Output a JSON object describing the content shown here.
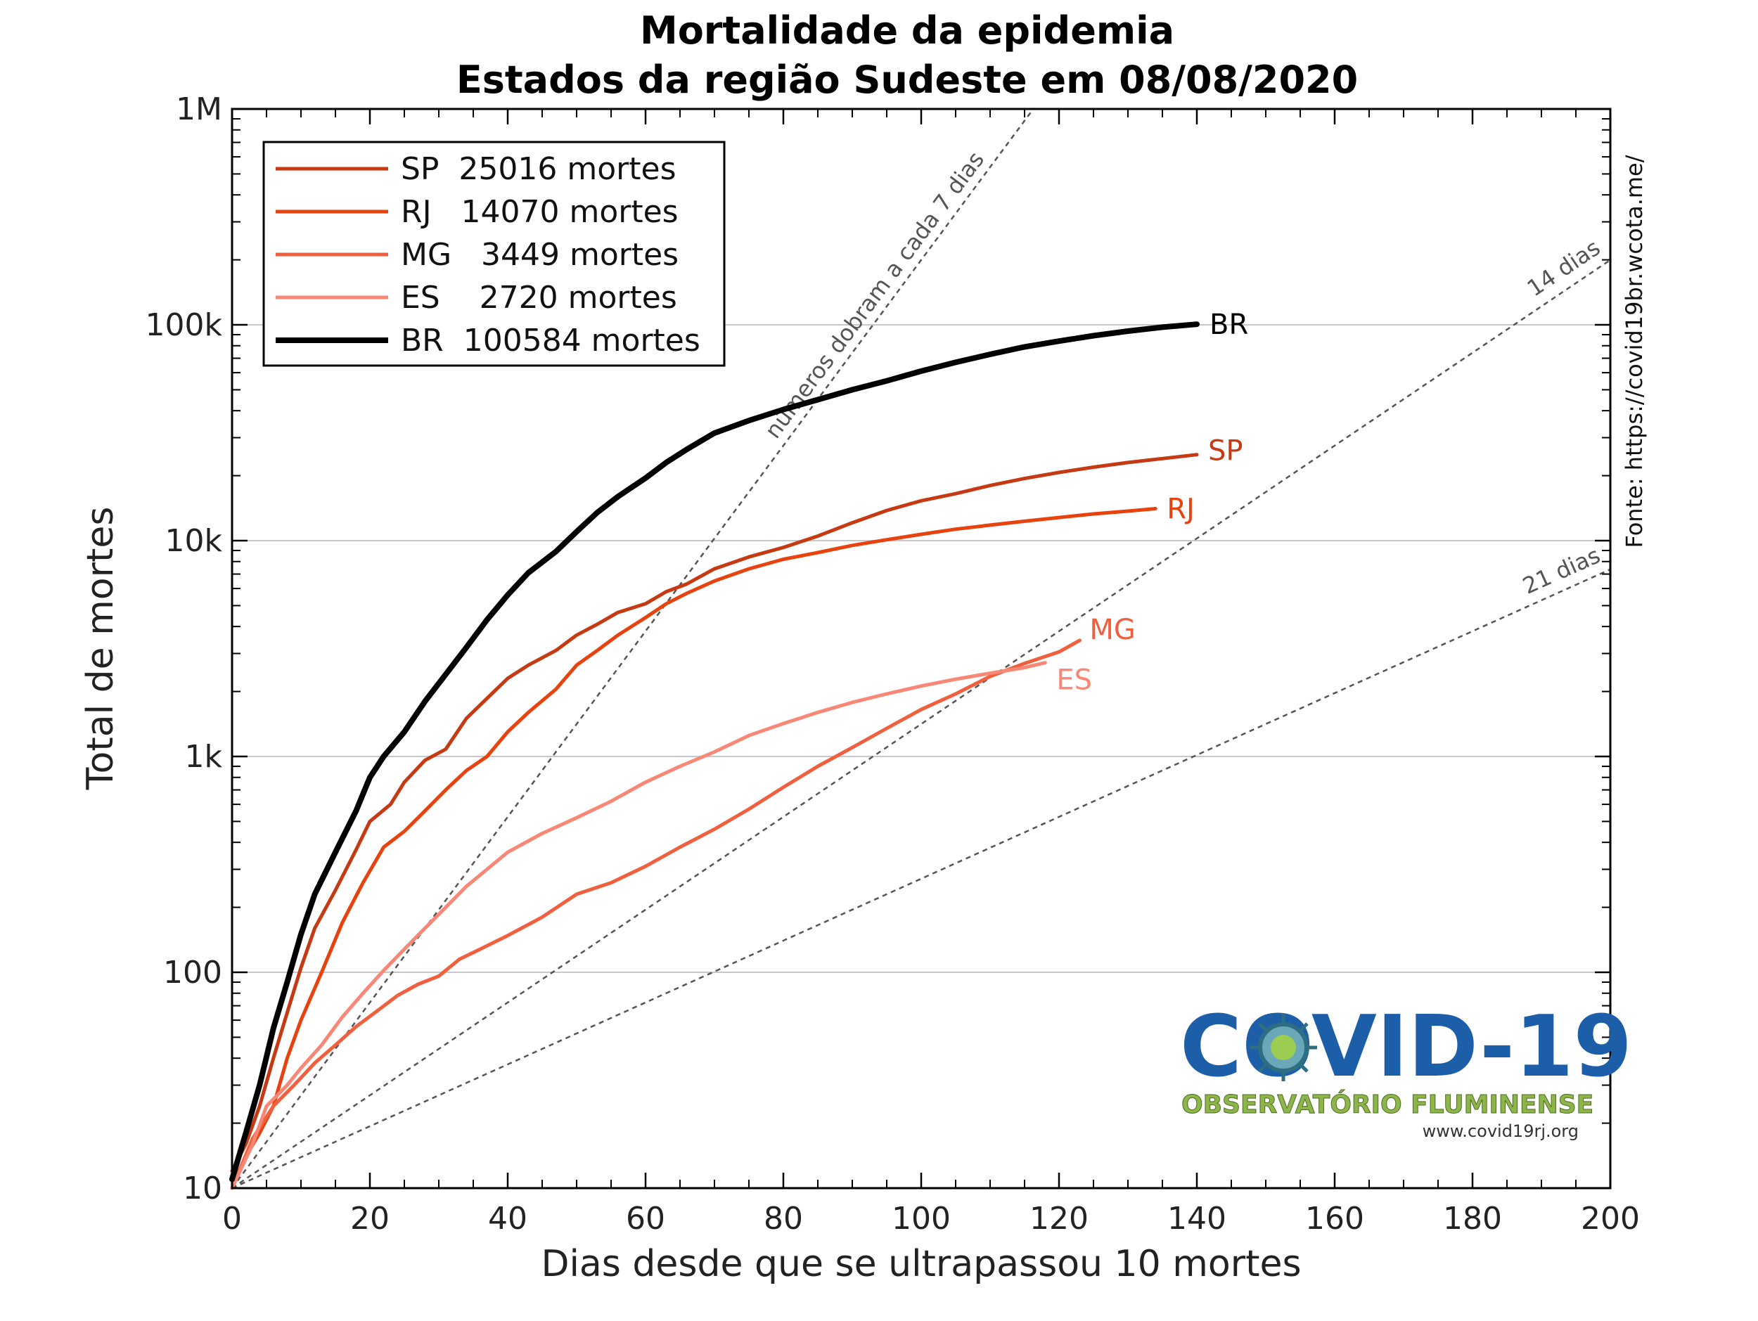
{
  "chart_data": {
    "type": "line",
    "title": "Mortalidade da epidemia",
    "subtitle": "Estados da região Sudeste em 08/08/2020",
    "xlabel": "Dias desde que se ultrapassou 10 mortes",
    "ylabel": "Total de mortes",
    "xlim": [
      0,
      200
    ],
    "ylim": [
      10,
      1000000
    ],
    "yscale": "log",
    "grid": "y-major",
    "legend_position": "top-left",
    "x_ticks": [
      0,
      20,
      40,
      60,
      80,
      100,
      120,
      140,
      160,
      180,
      200
    ],
    "y_ticks": [
      {
        "value": 10,
        "label": "10"
      },
      {
        "value": 100,
        "label": "100"
      },
      {
        "value": 1000,
        "label": "1k"
      },
      {
        "value": 10000,
        "label": "10k"
      },
      {
        "value": 100000,
        "label": "100k"
      },
      {
        "value": 1000000,
        "label": "1M"
      }
    ],
    "series": [
      {
        "name": "SP",
        "legend": "SP  25016 mortes",
        "color": "#c53a13",
        "end_label": "SP",
        "points": [
          [
            0,
            12
          ],
          [
            2,
            16
          ],
          [
            4,
            24
          ],
          [
            6,
            40
          ],
          [
            8,
            65
          ],
          [
            10,
            105
          ],
          [
            12,
            160
          ],
          [
            15,
            240
          ],
          [
            18,
            370
          ],
          [
            20,
            500
          ],
          [
            23,
            600
          ],
          [
            25,
            760
          ],
          [
            28,
            960
          ],
          [
            31,
            1080
          ],
          [
            34,
            1500
          ],
          [
            37,
            1860
          ],
          [
            40,
            2300
          ],
          [
            43,
            2650
          ],
          [
            47,
            3100
          ],
          [
            50,
            3650
          ],
          [
            53,
            4100
          ],
          [
            56,
            4650
          ],
          [
            60,
            5100
          ],
          [
            63,
            5800
          ],
          [
            66,
            6300
          ],
          [
            70,
            7400
          ],
          [
            75,
            8400
          ],
          [
            80,
            9300
          ],
          [
            85,
            10500
          ],
          [
            90,
            12100
          ],
          [
            95,
            13800
          ],
          [
            100,
            15300
          ],
          [
            105,
            16500
          ],
          [
            110,
            18000
          ],
          [
            115,
            19400
          ],
          [
            120,
            20700
          ],
          [
            125,
            21900
          ],
          [
            130,
            23000
          ],
          [
            135,
            24000
          ],
          [
            140,
            25016
          ]
        ]
      },
      {
        "name": "RJ",
        "legend": "RJ   14070 mortes",
        "color": "#e8420f",
        "end_label": "RJ",
        "points": [
          [
            0,
            10
          ],
          [
            2,
            14
          ],
          [
            4,
            18
          ],
          [
            6,
            24
          ],
          [
            8,
            40
          ],
          [
            10,
            60
          ],
          [
            13,
            100
          ],
          [
            16,
            170
          ],
          [
            19,
            260
          ],
          [
            22,
            380
          ],
          [
            25,
            450
          ],
          [
            28,
            560
          ],
          [
            31,
            700
          ],
          [
            34,
            860
          ],
          [
            37,
            1000
          ],
          [
            40,
            1300
          ],
          [
            43,
            1600
          ],
          [
            47,
            2050
          ],
          [
            50,
            2650
          ],
          [
            53,
            3100
          ],
          [
            56,
            3650
          ],
          [
            60,
            4400
          ],
          [
            63,
            5100
          ],
          [
            66,
            5700
          ],
          [
            70,
            6500
          ],
          [
            75,
            7400
          ],
          [
            80,
            8200
          ],
          [
            85,
            8800
          ],
          [
            90,
            9500
          ],
          [
            95,
            10100
          ],
          [
            100,
            10700
          ],
          [
            105,
            11300
          ],
          [
            110,
            11800
          ],
          [
            115,
            12300
          ],
          [
            120,
            12800
          ],
          [
            125,
            13300
          ],
          [
            130,
            13700
          ],
          [
            134,
            14070
          ]
        ]
      },
      {
        "name": "MG",
        "legend": "MG   3449 mortes",
        "color": "#f0603f",
        "end_label": "MG",
        "points": [
          [
            0,
            10
          ],
          [
            3,
            17
          ],
          [
            6,
            24
          ],
          [
            9,
            30
          ],
          [
            12,
            38
          ],
          [
            15,
            46
          ],
          [
            18,
            56
          ],
          [
            21,
            66
          ],
          [
            24,
            78
          ],
          [
            27,
            88
          ],
          [
            30,
            96
          ],
          [
            33,
            115
          ],
          [
            36,
            128
          ],
          [
            40,
            148
          ],
          [
            45,
            180
          ],
          [
            50,
            230
          ],
          [
            55,
            260
          ],
          [
            60,
            310
          ],
          [
            65,
            380
          ],
          [
            70,
            460
          ],
          [
            75,
            570
          ],
          [
            80,
            720
          ],
          [
            85,
            900
          ],
          [
            90,
            1100
          ],
          [
            95,
            1350
          ],
          [
            100,
            1650
          ],
          [
            105,
            1950
          ],
          [
            110,
            2350
          ],
          [
            115,
            2700
          ],
          [
            120,
            3050
          ],
          [
            123,
            3449
          ]
        ]
      },
      {
        "name": "ES",
        "legend": "ES    2720 mortes",
        "color": "#f88775",
        "end_label": "ES",
        "points": [
          [
            0,
            10
          ],
          [
            3,
            16
          ],
          [
            5,
            24
          ],
          [
            8,
            30
          ],
          [
            10,
            36
          ],
          [
            13,
            46
          ],
          [
            16,
            62
          ],
          [
            19,
            80
          ],
          [
            22,
            102
          ],
          [
            25,
            128
          ],
          [
            28,
            160
          ],
          [
            31,
            200
          ],
          [
            34,
            250
          ],
          [
            37,
            300
          ],
          [
            40,
            360
          ],
          [
            45,
            440
          ],
          [
            50,
            520
          ],
          [
            55,
            620
          ],
          [
            60,
            760
          ],
          [
            65,
            900
          ],
          [
            70,
            1050
          ],
          [
            75,
            1250
          ],
          [
            80,
            1420
          ],
          [
            85,
            1600
          ],
          [
            90,
            1780
          ],
          [
            95,
            1950
          ],
          [
            100,
            2120
          ],
          [
            105,
            2280
          ],
          [
            110,
            2430
          ],
          [
            115,
            2580
          ],
          [
            118,
            2720
          ]
        ]
      },
      {
        "name": "BR",
        "legend": "BR  100584 mortes",
        "color": "#000000",
        "end_label": "BR",
        "points": [
          [
            0,
            11
          ],
          [
            2,
            18
          ],
          [
            4,
            30
          ],
          [
            6,
            55
          ],
          [
            8,
            90
          ],
          [
            10,
            150
          ],
          [
            12,
            230
          ],
          [
            15,
            360
          ],
          [
            18,
            560
          ],
          [
            20,
            800
          ],
          [
            22,
            1000
          ],
          [
            25,
            1300
          ],
          [
            28,
            1800
          ],
          [
            31,
            2400
          ],
          [
            34,
            3200
          ],
          [
            37,
            4300
          ],
          [
            40,
            5600
          ],
          [
            43,
            7100
          ],
          [
            47,
            8900
          ],
          [
            50,
            11000
          ],
          [
            53,
            13500
          ],
          [
            56,
            16000
          ],
          [
            60,
            19500
          ],
          [
            63,
            23000
          ],
          [
            66,
            26500
          ],
          [
            70,
            31500
          ],
          [
            75,
            36000
          ],
          [
            80,
            40500
          ],
          [
            85,
            45000
          ],
          [
            90,
            50000
          ],
          [
            95,
            55000
          ],
          [
            100,
            61000
          ],
          [
            105,
            67000
          ],
          [
            110,
            73000
          ],
          [
            115,
            79000
          ],
          [
            120,
            84000
          ],
          [
            125,
            89000
          ],
          [
            130,
            93500
          ],
          [
            135,
            97500
          ],
          [
            140,
            100584
          ]
        ]
      }
    ],
    "reference_lines": [
      {
        "label": "números dobram a cada 7 dias",
        "doubling_days": 7
      },
      {
        "label": "14 dias",
        "doubling_days": 14
      },
      {
        "label": "21 dias",
        "doubling_days": 21
      }
    ]
  },
  "source_note": "Fonte: https://covid19br.wcota.me/",
  "logo": {
    "title": "COVID-19",
    "subtitle": "OBSERVATÓRIO FLUMINENSE",
    "url": "www.covid19rj.org",
    "primary_color": "#1d5ea8",
    "secondary_color": "#8db64a"
  }
}
